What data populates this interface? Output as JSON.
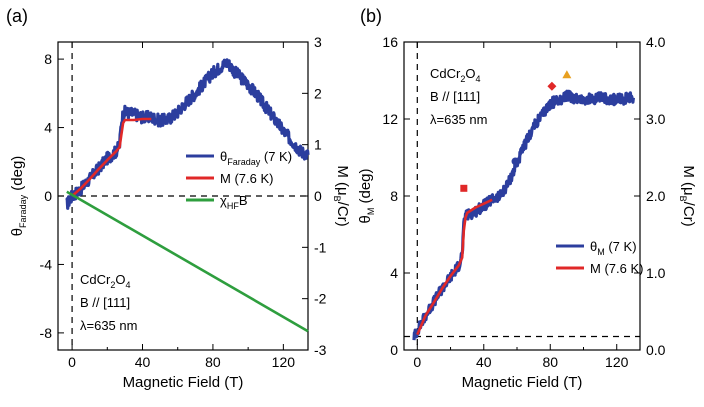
{
  "chart_data": [
    {
      "panel": "(a)",
      "type": "line",
      "xlabel": "Magnetic Field (T)",
      "ylabel_left": {
        "main": "θ",
        "sub": "Faraday",
        "suffix": " (deg)"
      },
      "ylabel_right": {
        "main": "M (μ",
        "sub": "B",
        "suffix": "/Cr)"
      },
      "xlim": [
        -8,
        134
      ],
      "ylim_left": [
        -9,
        9
      ],
      "ylim_right": [
        -3,
        3
      ],
      "xticks": [
        0,
        40,
        80,
        120
      ],
      "yticks_left": [
        -8,
        -4,
        0,
        4,
        8
      ],
      "yticks_right": [
        -3,
        -2,
        -1,
        0,
        1,
        2,
        3
      ],
      "annotation": {
        "line1": "CdCr",
        "sub1": "2",
        "mid1": "O",
        "sub2": "4",
        "line2": "B // [111]",
        "line3": "λ=635 nm"
      },
      "legend_position": "center-right",
      "series": [
        {
          "name": {
            "main": "θ",
            "sub": "Faraday",
            "suffix": " (7 K)"
          },
          "color": "#2c3e9e",
          "axis": "left",
          "x": [
            -3,
            0,
            5,
            10,
            15,
            20,
            25,
            27,
            28,
            29,
            30,
            35,
            40,
            45,
            50,
            55,
            60,
            65,
            70,
            75,
            80,
            85,
            88,
            90,
            92,
            95,
            100,
            105,
            110,
            115,
            120,
            125,
            130,
            134
          ],
          "y": [
            -0.5,
            0,
            0.4,
            1.0,
            1.6,
            2.2,
            2.6,
            3.0,
            4.3,
            4.8,
            4.9,
            4.8,
            4.6,
            4.6,
            4.4,
            4.5,
            4.9,
            5.5,
            6.0,
            6.6,
            7.2,
            7.6,
            7.8,
            7.6,
            7.3,
            7.0,
            6.5,
            5.9,
            5.2,
            4.5,
            3.8,
            3.2,
            2.6,
            2.4
          ]
        },
        {
          "name": {
            "main": "M (7.6 K)",
            "sub": "",
            "suffix": ""
          },
          "color": "#e02828",
          "axis": "right",
          "x": [
            0,
            5,
            10,
            15,
            20,
            25,
            27,
            28,
            29,
            30,
            35,
            40,
            45
          ],
          "y": [
            0,
            0.15,
            0.33,
            0.52,
            0.7,
            0.87,
            0.95,
            1.2,
            1.42,
            1.48,
            1.48,
            1.5,
            1.5
          ]
        },
        {
          "name": {
            "main": "χ",
            "sub": "HF",
            "suffix": "B"
          },
          "color": "#2e9e3e",
          "axis": "left",
          "x": [
            -3,
            134
          ],
          "y": [
            0.25,
            -7.9
          ]
        }
      ],
      "hlines": [
        0
      ],
      "vlines": [
        0
      ]
    },
    {
      "panel": "(b)",
      "type": "line",
      "xlabel": "Magnetic Field (T)",
      "ylabel_left": {
        "main": "θ",
        "sub": "M",
        "suffix": " (deg)"
      },
      "ylabel_right": {
        "main": "M (μ",
        "sub": "B",
        "suffix": "/Cr)"
      },
      "xlim": [
        -8,
        134
      ],
      "ylim_left": [
        0,
        16
      ],
      "ylim_right": [
        0,
        4
      ],
      "xticks": [
        0,
        40,
        80,
        120
      ],
      "yticks_left": [
        0,
        4,
        8,
        12,
        16
      ],
      "yticks_right": [
        "0.0",
        "1.0",
        "2.0",
        "3.0",
        "4.0"
      ],
      "annotation": {
        "line1": "CdCr",
        "sub1": "2",
        "mid1": "O",
        "sub2": "4",
        "line2": "B // [111]",
        "line3": "λ=635 nm"
      },
      "legend_position": "lower-right",
      "series": [
        {
          "name": {
            "main": "θ",
            "sub": "M",
            "suffix": " (7 K)"
          },
          "color": "#2c3e9e",
          "axis": "left",
          "x": [
            -2,
            0,
            5,
            10,
            15,
            20,
            25,
            27,
            28,
            29,
            30,
            35,
            40,
            45,
            50,
            55,
            60,
            65,
            70,
            75,
            80,
            85,
            88,
            90,
            95,
            100,
            110,
            120,
            130
          ],
          "y": [
            0.7,
            1.0,
            1.8,
            2.5,
            3.2,
            3.8,
            4.4,
            5.0,
            6.4,
            7.0,
            7.0,
            7.2,
            7.5,
            7.8,
            8.0,
            8.7,
            9.7,
            10.7,
            11.6,
            12.2,
            12.8,
            13.0,
            13.1,
            13.2,
            13.1,
            13.0,
            13.1,
            13.0,
            13.1
          ]
        },
        {
          "name": {
            "main": "M (7.6 K)",
            "sub": "",
            "suffix": ""
          },
          "color": "#e02828",
          "axis": "right",
          "x": [
            0,
            5,
            10,
            15,
            20,
            25,
            27,
            28,
            29,
            30,
            35,
            40,
            45
          ],
          "y": [
            0.2,
            0.45,
            0.62,
            0.8,
            0.96,
            1.1,
            1.2,
            1.55,
            1.72,
            1.78,
            1.85,
            1.9,
            1.95
          ]
        }
      ],
      "markers": [
        {
          "shape": "square",
          "color": "#e02828",
          "x": 28,
          "y": 8.4
        },
        {
          "shape": "circle",
          "color": "#2c3e9e",
          "x": 59,
          "y": 9.8
        },
        {
          "shape": "diamond",
          "color": "#e02828",
          "x": 81,
          "y": 13.7
        },
        {
          "shape": "triangle",
          "color": "#e8a020",
          "x": 90,
          "y": 14.3
        }
      ],
      "hlines": [
        0.7
      ],
      "vlines": [
        0
      ]
    }
  ]
}
